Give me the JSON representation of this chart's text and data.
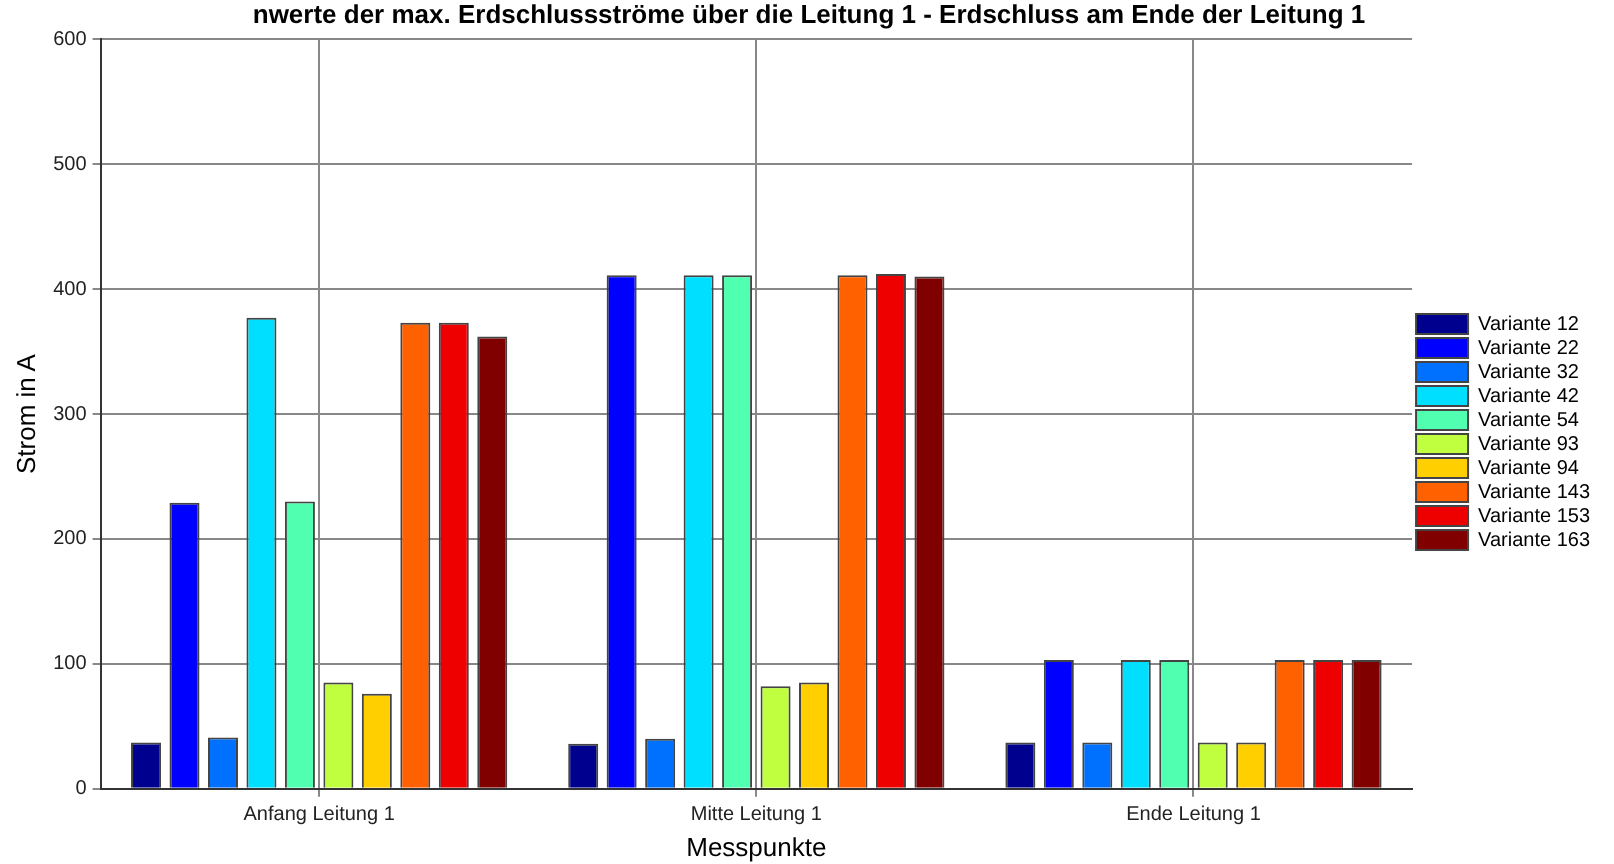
{
  "chart_data": {
    "type": "bar",
    "title": "nwerte der max. Erdschlussströme über die Leitung 1 - Erdschluss am Ende der Leitung 1",
    "xlabel": "Messpunkte",
    "ylabel": "Strom in A",
    "categories": [
      "Anfang Leitung 1",
      "Mitte Leitung 1",
      "Ende Leitung 1"
    ],
    "series": [
      {
        "name": "Variante 12",
        "color": "#00008f",
        "values": [
          37,
          36,
          37
        ]
      },
      {
        "name": "Variante 22",
        "color": "#0000ff",
        "values": [
          229,
          411,
          103
        ]
      },
      {
        "name": "Variante 32",
        "color": "#0070ff",
        "values": [
          41,
          40,
          37
        ]
      },
      {
        "name": "Variante 42",
        "color": "#00dfff",
        "values": [
          377,
          411,
          103
        ]
      },
      {
        "name": "Variante 54",
        "color": "#50ffaf",
        "values": [
          230,
          411,
          103
        ]
      },
      {
        "name": "Variante 93",
        "color": "#bfff40",
        "values": [
          85,
          82,
          37
        ]
      },
      {
        "name": "Variante 94",
        "color": "#ffcf00",
        "values": [
          76,
          85,
          37
        ]
      },
      {
        "name": "Variante 143",
        "color": "#ff6000",
        "values": [
          373,
          411,
          103
        ]
      },
      {
        "name": "Variante 153",
        "color": "#ef0000",
        "values": [
          373,
          412,
          103
        ]
      },
      {
        "name": "Variante 163",
        "color": "#800000",
        "values": [
          362,
          410,
          103
        ]
      }
    ],
    "ylim": [
      0,
      600
    ],
    "yticks": [
      0,
      100,
      200,
      300,
      400,
      500,
      600
    ],
    "grid": true,
    "legend": "right"
  }
}
